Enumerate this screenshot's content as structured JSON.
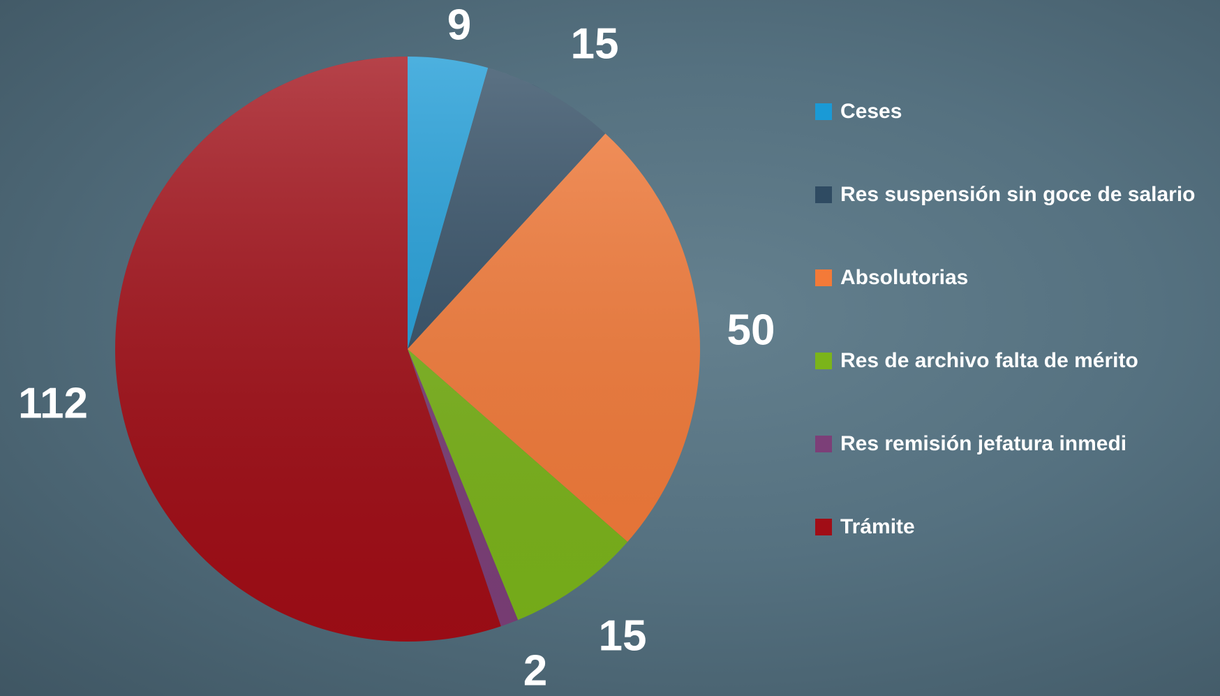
{
  "chart_data": {
    "type": "pie",
    "categories": [
      "Ceses",
      "Res suspensión sin goce de salario",
      "Absolutorias",
      "Res de archivo falta de mérito",
      "Res remisión jefatura inmedi",
      "Trámite"
    ],
    "values": [
      9,
      15,
      50,
      15,
      2,
      112
    ],
    "colors": [
      "#1a9ad6",
      "#2f4b62",
      "#f47a38",
      "#7bb41a",
      "#7c3f78",
      "#a10d16"
    ],
    "legend": "right"
  }
}
